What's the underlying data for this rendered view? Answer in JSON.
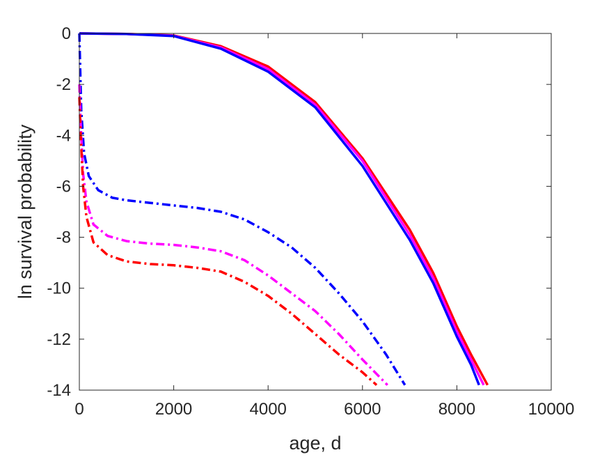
{
  "chart_data": {
    "type": "line",
    "title": "",
    "xlabel": "age, d",
    "ylabel": "ln survival probability",
    "xlim": [
      0,
      10000
    ],
    "ylim": [
      -14,
      0
    ],
    "xticks": [
      0,
      2000,
      4000,
      6000,
      8000,
      10000
    ],
    "yticks": [
      0,
      -2,
      -4,
      -6,
      -8,
      -10,
      -12,
      -14
    ],
    "xtick_labels": [
      "0",
      "2000",
      "4000",
      "6000",
      "8000",
      "10000"
    ],
    "ytick_labels": [
      "0",
      "-2",
      "-4",
      "-6",
      "-8",
      "-10",
      "-12",
      "-14"
    ],
    "grid": false,
    "legend": "none",
    "series": [
      {
        "color": "#ff0000",
        "style": "solid",
        "x": [
          0,
          1000,
          2000,
          3000,
          4000,
          5000,
          6000,
          7000,
          7500,
          8000,
          8300,
          8650
        ],
        "y": [
          0,
          -0.02,
          -0.08,
          -0.5,
          -1.3,
          -2.7,
          -4.9,
          -7.7,
          -9.4,
          -11.5,
          -12.6,
          -13.8
        ]
      },
      {
        "color": "#ff00ff",
        "style": "solid",
        "x": [
          0,
          1000,
          2000,
          3000,
          4000,
          5000,
          6000,
          7000,
          7500,
          8000,
          8300,
          8570
        ],
        "y": [
          0,
          -0.02,
          -0.09,
          -0.55,
          -1.4,
          -2.8,
          -5.0,
          -7.9,
          -9.6,
          -11.7,
          -12.8,
          -13.8
        ]
      },
      {
        "color": "#0000ff",
        "style": "solid",
        "x": [
          0,
          1000,
          2000,
          3000,
          4000,
          5000,
          6000,
          7000,
          7500,
          8000,
          8300,
          8470
        ],
        "y": [
          0,
          -0.02,
          -0.1,
          -0.6,
          -1.5,
          -2.9,
          -5.2,
          -8.1,
          -9.8,
          -11.9,
          -13.0,
          -13.8
        ]
      },
      {
        "color": "#0000ff",
        "style": "dashdot",
        "x": [
          0,
          40,
          100,
          200,
          400,
          700,
          1000,
          1500,
          2000,
          2500,
          3000,
          3500,
          4000,
          4500,
          5000,
          5500,
          6000,
          6500,
          6900
        ],
        "y": [
          0,
          -3.0,
          -4.7,
          -5.6,
          -6.15,
          -6.45,
          -6.55,
          -6.65,
          -6.75,
          -6.85,
          -7.0,
          -7.3,
          -7.8,
          -8.4,
          -9.2,
          -10.2,
          -11.3,
          -12.6,
          -13.8
        ]
      },
      {
        "color": "#ff00ff",
        "style": "dashdot",
        "x": [
          0,
          30,
          80,
          150,
          300,
          600,
          1000,
          1500,
          2000,
          2500,
          3000,
          3500,
          4000,
          4500,
          5000,
          5500,
          6000,
          6530
        ],
        "y": [
          -2.0,
          -3.6,
          -5.5,
          -6.6,
          -7.5,
          -7.95,
          -8.15,
          -8.25,
          -8.3,
          -8.4,
          -8.55,
          -8.9,
          -9.5,
          -10.2,
          -10.9,
          -11.8,
          -12.8,
          -13.8
        ]
      },
      {
        "color": "#ff0000",
        "style": "dashdot",
        "x": [
          0,
          30,
          80,
          150,
          300,
          600,
          1000,
          1500,
          2000,
          2500,
          3000,
          3500,
          4000,
          4500,
          5000,
          5500,
          6000,
          6300
        ],
        "y": [
          -2.5,
          -4.0,
          -6.0,
          -7.2,
          -8.2,
          -8.7,
          -8.95,
          -9.05,
          -9.1,
          -9.2,
          -9.35,
          -9.75,
          -10.3,
          -11.0,
          -11.8,
          -12.6,
          -13.3,
          -13.8
        ]
      }
    ]
  }
}
